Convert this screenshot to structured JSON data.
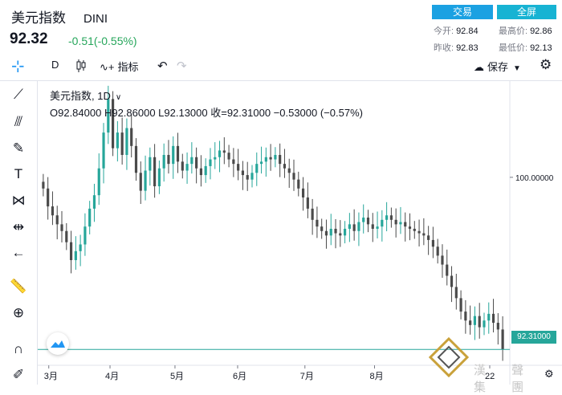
{
  "header": {
    "name": "美元指数",
    "code": "DINI",
    "price": "92.32",
    "change": "-0.51(-0.55%)",
    "trade_button": "交易",
    "fullscreen_button": "全屏",
    "stats": [
      {
        "label": "今开:",
        "value": "92.84"
      },
      {
        "label": "最高价:",
        "value": "92.86"
      },
      {
        "label": "昨收:",
        "value": "92.83"
      },
      {
        "label": "最低价:",
        "value": "92.13"
      }
    ]
  },
  "toolbar": {
    "interval": "D",
    "indicators_label": "指标",
    "save_label": "保存"
  },
  "legend": {
    "symbol": "美元指数, 1D",
    "ohlc": "O92.84000  H92.86000  L92.13000  收=92.31000  −0.53000 (−0.57%)"
  },
  "price_axis": {
    "tick_label": "100.00000",
    "last_price_label": "92.31000"
  },
  "time_axis": {
    "labels": [
      "3月",
      "4月",
      "5月",
      "6月",
      "7月",
      "8月",
      "22"
    ]
  },
  "watermark": {
    "text": "漢 聲 集 團"
  },
  "chart_data": {
    "type": "candlestick",
    "colors": {
      "up": "#26a69a",
      "down": "#4a4a4a",
      "last_price_line": "#26a69a"
    },
    "y_tick": 100,
    "last_price": 92.31,
    "candles_close_approx": [
      99.5,
      98.7,
      98.3,
      97.9,
      97.6,
      97.1,
      96.3,
      96.7,
      97.0,
      97.8,
      98.6,
      99.2,
      100.4,
      102.0,
      103.5,
      101.3,
      102.0,
      101.0,
      102.2,
      101.4,
      100.2,
      99.4,
      100.3,
      100.9,
      99.6,
      100.4,
      101.0,
      100.6,
      101.4,
      100.7,
      100.3,
      100.6,
      100.9,
      100.4,
      100.1,
      100.5,
      100.8,
      100.9,
      101.2,
      101.1,
      100.8,
      100.6,
      100.3,
      100.1,
      99.9,
      100.2,
      100.6,
      100.7,
      100.9,
      100.8,
      101.0,
      100.6,
      100.4,
      100.2,
      99.9,
      99.5,
      99.1,
      98.6,
      98.1,
      97.8,
      97.6,
      97.4,
      97.7,
      97.5,
      97.4,
      97.7,
      97.9,
      97.6,
      98.0,
      98.2,
      97.9,
      97.7,
      97.8,
      98.1,
      98.3,
      98.1,
      97.9,
      98.0,
      97.8,
      97.7,
      97.6,
      97.5,
      97.4,
      97.2,
      96.9,
      96.5,
      96.1,
      95.6,
      95.1,
      94.6,
      94.0,
      93.6,
      93.4,
      93.8,
      93.3,
      93.6,
      93.9,
      93.5,
      93.2,
      92.31
    ]
  }
}
